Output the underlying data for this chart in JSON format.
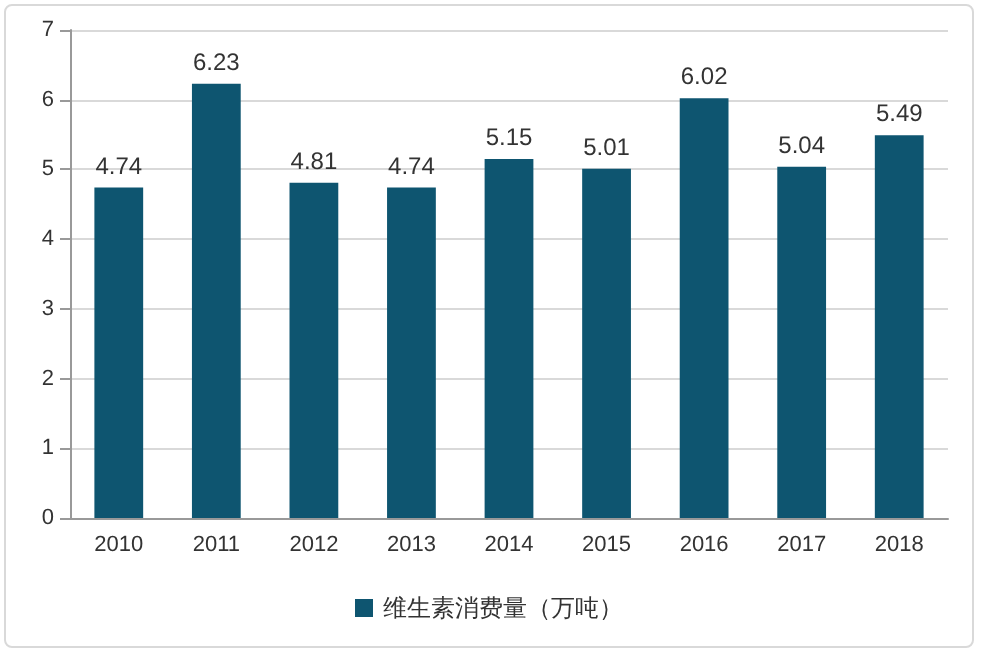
{
  "chart_data": {
    "type": "bar",
    "categories": [
      "2010",
      "2011",
      "2012",
      "2013",
      "2014",
      "2015",
      "2016",
      "2017",
      "2018"
    ],
    "series": [
      {
        "name": "维生素消费量（万吨）",
        "color": "#0e5570",
        "values": [
          4.74,
          6.23,
          4.81,
          4.74,
          5.15,
          5.01,
          6.02,
          5.04,
          5.49
        ]
      }
    ],
    "ylim": [
      0,
      7
    ],
    "yticks": [
      0,
      1,
      2,
      3,
      4,
      5,
      6,
      7
    ],
    "grid": "y",
    "legend": "bottom",
    "data_labels": true
  }
}
